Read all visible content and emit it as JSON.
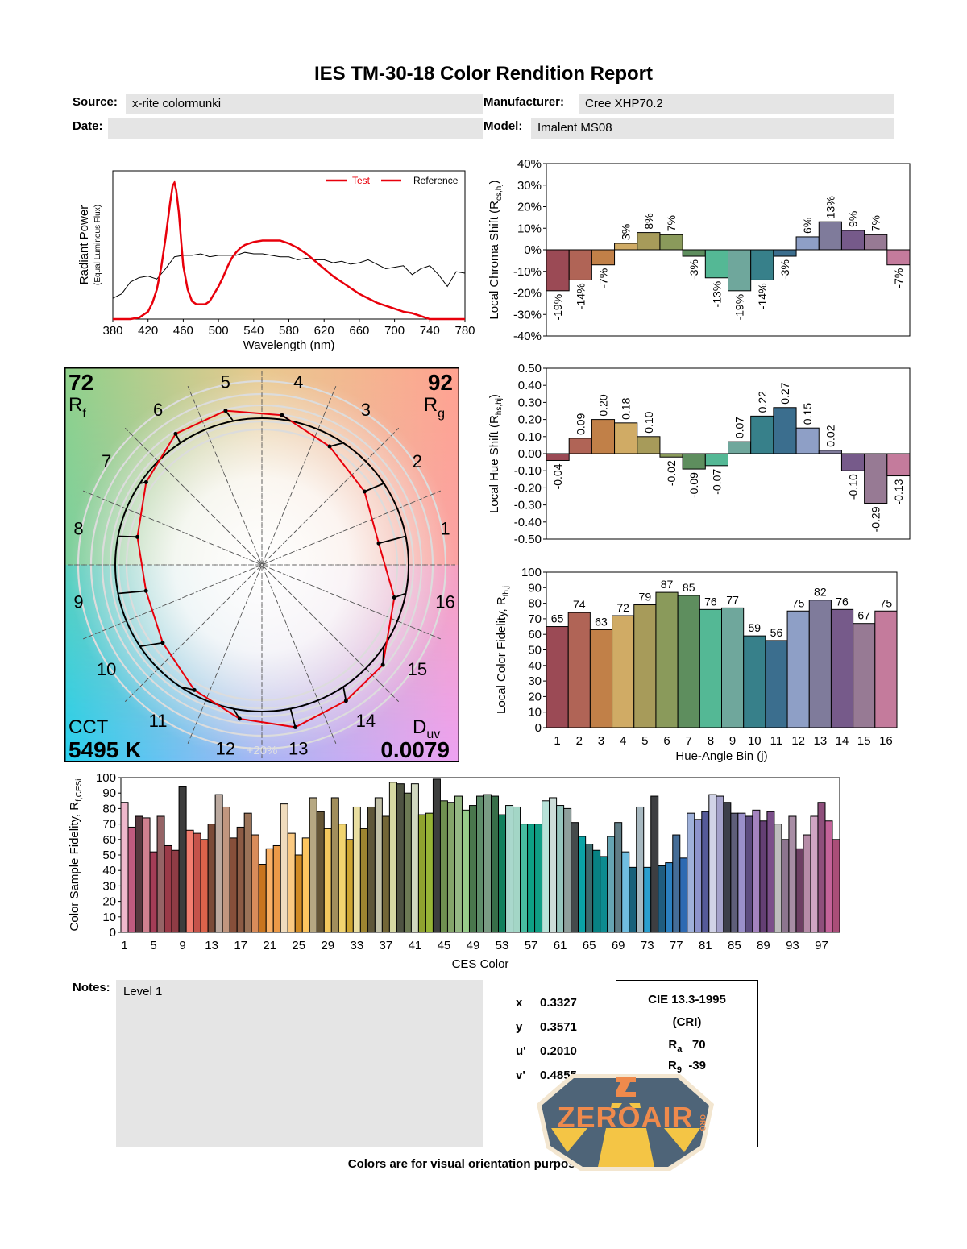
{
  "header": {
    "title": "IES TM-30-18 Color Rendition Report",
    "source_label": "Source:",
    "source_value": "x-rite colormunki",
    "date_label": "Date:",
    "date_value": "",
    "manufacturer_label": "Manufacturer:",
    "manufacturer_value": "Cree XHP70.2",
    "model_label": "Model:",
    "model_value": "Imalent MS08"
  },
  "vector_graphic": {
    "rf_value": "72",
    "rf_label": "R",
    "rf_sub": "f",
    "rg_value": "92",
    "rg_label": "R",
    "rg_sub": "g",
    "cct_label": "CCT",
    "cct_value": "5495 K",
    "duv_label": "D",
    "duv_sub": "uv",
    "duv_value": "0.0079",
    "scale_label": "+20%",
    "bin_labels": [
      "1",
      "2",
      "3",
      "4",
      "5",
      "6",
      "7",
      "8",
      "9",
      "10",
      "11",
      "12",
      "13",
      "14",
      "15",
      "16"
    ]
  },
  "notes": {
    "label": "Notes:",
    "value": "Level 1"
  },
  "chromaticity": [
    {
      "label": "x",
      "value": "0.3327"
    },
    {
      "label": "y",
      "value": "0.3571"
    },
    {
      "label": "u'",
      "value": "0.2010"
    },
    {
      "label": "v'",
      "value": "0.4855"
    }
  ],
  "cri": {
    "title": "CIE 13.3-1995",
    "subtitle": "(CRI)",
    "ra_label": "R",
    "ra_sub": "a",
    "ra_value": "70",
    "r9_label": "R",
    "r9_sub": "9",
    "r9_value": "-39"
  },
  "footer": "Colors are for visual orientation purposes only.",
  "logo": {
    "text": "ZEROAIR",
    "suffix": "ORG"
  },
  "chart_data": [
    {
      "id": "spd",
      "type": "line",
      "title": "",
      "xlabel": "Wavelength (nm)",
      "ylabel": "Radiant Power",
      "ylabel_sub": "(Equal Luminous Flux)",
      "xlim": [
        380,
        780
      ],
      "xticks": [
        380,
        420,
        460,
        500,
        540,
        580,
        620,
        660,
        700,
        740,
        780
      ],
      "legend": "top-right",
      "series": [
        {
          "name": "Test",
          "color": "#e8000b",
          "x": [
            380,
            400,
            410,
            420,
            425,
            430,
            435,
            440,
            445,
            448,
            450,
            452,
            455,
            458,
            460,
            465,
            470,
            475,
            480,
            485,
            490,
            495,
            500,
            505,
            510,
            515,
            520,
            525,
            530,
            540,
            550,
            560,
            570,
            580,
            590,
            600,
            610,
            620,
            630,
            640,
            650,
            660,
            670,
            680,
            690,
            700,
            710,
            720,
            730,
            740,
            780
          ],
          "y": [
            0,
            0,
            0.01,
            0.05,
            0.11,
            0.2,
            0.35,
            0.55,
            0.78,
            0.9,
            0.92,
            0.87,
            0.72,
            0.5,
            0.36,
            0.2,
            0.12,
            0.1,
            0.1,
            0.1,
            0.12,
            0.17,
            0.22,
            0.28,
            0.35,
            0.41,
            0.45,
            0.48,
            0.5,
            0.52,
            0.53,
            0.53,
            0.53,
            0.51,
            0.48,
            0.44,
            0.39,
            0.34,
            0.29,
            0.25,
            0.21,
            0.17,
            0.14,
            0.11,
            0.09,
            0.07,
            0.05,
            0.04,
            0.02,
            0,
            0
          ]
        },
        {
          "name": "Reference",
          "color": "#000000",
          "x": [
            380,
            390,
            400,
            410,
            420,
            430,
            440,
            450,
            460,
            470,
            480,
            490,
            500,
            510,
            520,
            530,
            540,
            550,
            560,
            570,
            580,
            590,
            600,
            610,
            620,
            630,
            640,
            650,
            660,
            670,
            680,
            690,
            700,
            710,
            720,
            730,
            740,
            750,
            760,
            770,
            780
          ],
          "y": [
            0.14,
            0.17,
            0.25,
            0.28,
            0.29,
            0.27,
            0.34,
            0.42,
            0.43,
            0.43,
            0.44,
            0.42,
            0.43,
            0.43,
            0.43,
            0.45,
            0.44,
            0.44,
            0.43,
            0.42,
            0.42,
            0.4,
            0.41,
            0.4,
            0.4,
            0.38,
            0.39,
            0.37,
            0.38,
            0.4,
            0.37,
            0.34,
            0.35,
            0.36,
            0.3,
            0.34,
            0.36,
            0.3,
            0.22,
            0.32,
            0.31
          ]
        }
      ]
    },
    {
      "id": "chroma-shift",
      "type": "bar",
      "ylabel": "Local Chroma Shift (R",
      "ylabel_sub": "cs,hj",
      "ylabel_tail": ")",
      "ylim": [
        -40,
        40
      ],
      "yticks": [
        "40%",
        "30%",
        "20%",
        "10%",
        "0%",
        "-10%",
        "-20%",
        "-30%",
        "-40%"
      ],
      "categories": [
        "1",
        "2",
        "3",
        "4",
        "5",
        "6",
        "7",
        "8",
        "9",
        "10",
        "11",
        "12",
        "13",
        "14",
        "15",
        "16"
      ],
      "values": [
        -19,
        -14,
        -7,
        3,
        8,
        7,
        -3,
        -13,
        -19,
        -14,
        -3,
        6,
        13,
        9,
        7,
        -7
      ],
      "value_labels": [
        "-19%",
        "-14%",
        "-7%",
        "3%",
        "8%",
        "7%",
        "-3%",
        "-13%",
        "-19%",
        "-14%",
        "-3%",
        "6%",
        "13%",
        "9%",
        "7%",
        "-7%"
      ]
    },
    {
      "id": "hue-shift",
      "type": "bar",
      "ylabel": "Local Hue Shift (R",
      "ylabel_sub": "hs,hj",
      "ylabel_tail": ")",
      "ylim": [
        -0.5,
        0.5
      ],
      "yticks": [
        "0.50",
        "0.40",
        "0.30",
        "0.20",
        "0.10",
        "0.00",
        "-0.10",
        "-0.20",
        "-0.30",
        "-0.40",
        "-0.50"
      ],
      "categories": [
        "1",
        "2",
        "3",
        "4",
        "5",
        "6",
        "7",
        "8",
        "9",
        "10",
        "11",
        "12",
        "13",
        "14",
        "15",
        "16"
      ],
      "values": [
        -0.04,
        0.09,
        0.2,
        0.18,
        0.1,
        -0.02,
        -0.09,
        -0.07,
        0.07,
        0.22,
        0.27,
        0.15,
        0.02,
        -0.1,
        -0.29,
        -0.13
      ],
      "value_labels": [
        "-0.04",
        "0.09",
        "0.20",
        "0.18",
        "0.10",
        "-0.02",
        "-0.09",
        "-0.07",
        "0.07",
        "0.22",
        "0.27",
        "0.15",
        "0.02",
        "-0.10",
        "-0.29",
        "-0.13"
      ]
    },
    {
      "id": "local-fidelity",
      "type": "bar",
      "ylabel": "Local Color Fidelity, R",
      "ylabel_sub": "fh,j",
      "xlabel": "Hue-Angle Bin (j)",
      "ylim": [
        0,
        100
      ],
      "yticks": [
        "100",
        "90",
        "80",
        "70",
        "60",
        "50",
        "40",
        "30",
        "20",
        "10",
        "0"
      ],
      "categories": [
        "1",
        "2",
        "3",
        "4",
        "5",
        "6",
        "7",
        "8",
        "9",
        "10",
        "11",
        "12",
        "13",
        "14",
        "15",
        "16"
      ],
      "values": [
        65,
        74,
        63,
        72,
        79,
        87,
        85,
        76,
        77,
        59,
        56,
        75,
        82,
        76,
        67,
        75
      ]
    },
    {
      "id": "ces-fidelity",
      "type": "bar",
      "ylabel": "Color Sample Fidelity, R",
      "ylabel_sub": "f,CESi",
      "xlabel": "CES Color",
      "ylim": [
        0,
        100
      ],
      "yticks": [
        "100",
        "90",
        "80",
        "70",
        "60",
        "50",
        "40",
        "30",
        "20",
        "10",
        "0"
      ],
      "xticks": [
        "1",
        "5",
        "9",
        "13",
        "17",
        "21",
        "25",
        "29",
        "33",
        "37",
        "41",
        "45",
        "49",
        "53",
        "57",
        "61",
        "65",
        "69",
        "73",
        "77",
        "81",
        "85",
        "89",
        "93",
        "97"
      ],
      "values": [
        84,
        68,
        75,
        74,
        52,
        75,
        56,
        53,
        94,
        66,
        64,
        60,
        70,
        89,
        81,
        61,
        68,
        77,
        63,
        44,
        54,
        56,
        83,
        64,
        50,
        61,
        87,
        78,
        67,
        87,
        70,
        60,
        81,
        67,
        81,
        87,
        75,
        97,
        96,
        90,
        96,
        76,
        77,
        99,
        85,
        84,
        88,
        79,
        82,
        88,
        89,
        88,
        76,
        82,
        81,
        70,
        70,
        70,
        85,
        87,
        82,
        80,
        71,
        62,
        57,
        53,
        49,
        62,
        71,
        52,
        42,
        81,
        42,
        88,
        43,
        45,
        63,
        48,
        77,
        73,
        78,
        89,
        88,
        84,
        77,
        77,
        75,
        79,
        72,
        78,
        70,
        60,
        75,
        54,
        63,
        75,
        84,
        72,
        60
      ]
    }
  ],
  "colors": {
    "bins": [
      "#9b4a55",
      "#b06456",
      "#c18048",
      "#d0ab65",
      "#a79b5a",
      "#8a9a5b",
      "#5e8e5e",
      "#54b895",
      "#6fa79c",
      "#37808a",
      "#3b6e8e",
      "#8e9fc6",
      "#7f7b9b",
      "#765a8a",
      "#977a94",
      "#c47b9c"
    ],
    "ces": [
      "#efb8cc",
      "#c05b7f",
      "#57383e",
      "#d0808f",
      "#a43d57",
      "#956466",
      "#9a3a48",
      "#8f3c45",
      "#3d3d3d",
      "#f37e6f",
      "#c4534a",
      "#dc634b",
      "#7a4b39",
      "#bba99f",
      "#c1967f",
      "#874f3a",
      "#8c5b44",
      "#9b7358",
      "#d98c5a",
      "#c8741e",
      "#fab166",
      "#ec9a48",
      "#f0dcbd",
      "#fbca82",
      "#d18b25",
      "#fcc560",
      "#b6a882",
      "#655636",
      "#f2c85e",
      "#a18e5c",
      "#f1d46f",
      "#cea631",
      "#e9dea1",
      "#9e8530",
      "#5f573a",
      "#c2c1a8",
      "#736636",
      "#d6d9a3",
      "#4e5342",
      "#6c7a54",
      "#d1d8c0",
      "#8fa22f",
      "#97b436",
      "#3d3e3d",
      "#6f9150",
      "#84a56a",
      "#95b884",
      "#97cc8a",
      "#49774d",
      "#5e8d6a",
      "#7a9c84",
      "#376e48",
      "#12805d",
      "#a9d8cc",
      "#a3d6c6",
      "#47bca1",
      "#0ea085",
      "#0f9d84",
      "#b7e2d8",
      "#ccdcd8",
      "#96c5bd",
      "#8f9f9c",
      "#444a4b",
      "#0aa3a5",
      "#3b6a6c",
      "#078283",
      "#0d8b90",
      "#66a5b3",
      "#607d86",
      "#70bde0",
      "#17607a",
      "#a8b9c1",
      "#2b9fcf",
      "#3d3e41",
      "#1f5d80",
      "#2b80c0",
      "#456d97",
      "#2e6ab2",
      "#9fb1da",
      "#8d94cc",
      "#555a99",
      "#d1d3e7",
      "#a5a2cb",
      "#3d3f4a",
      "#5e5e79",
      "#9a8fca",
      "#5c4b7f",
      "#a483bf",
      "#643f74",
      "#7b4f8a",
      "#bdbdbd",
      "#8c758e",
      "#a88da5",
      "#6d3f63",
      "#b68ca8",
      "#d0a5c3",
      "#8f4f7c",
      "#c4639a",
      "#a94e78"
    ]
  }
}
